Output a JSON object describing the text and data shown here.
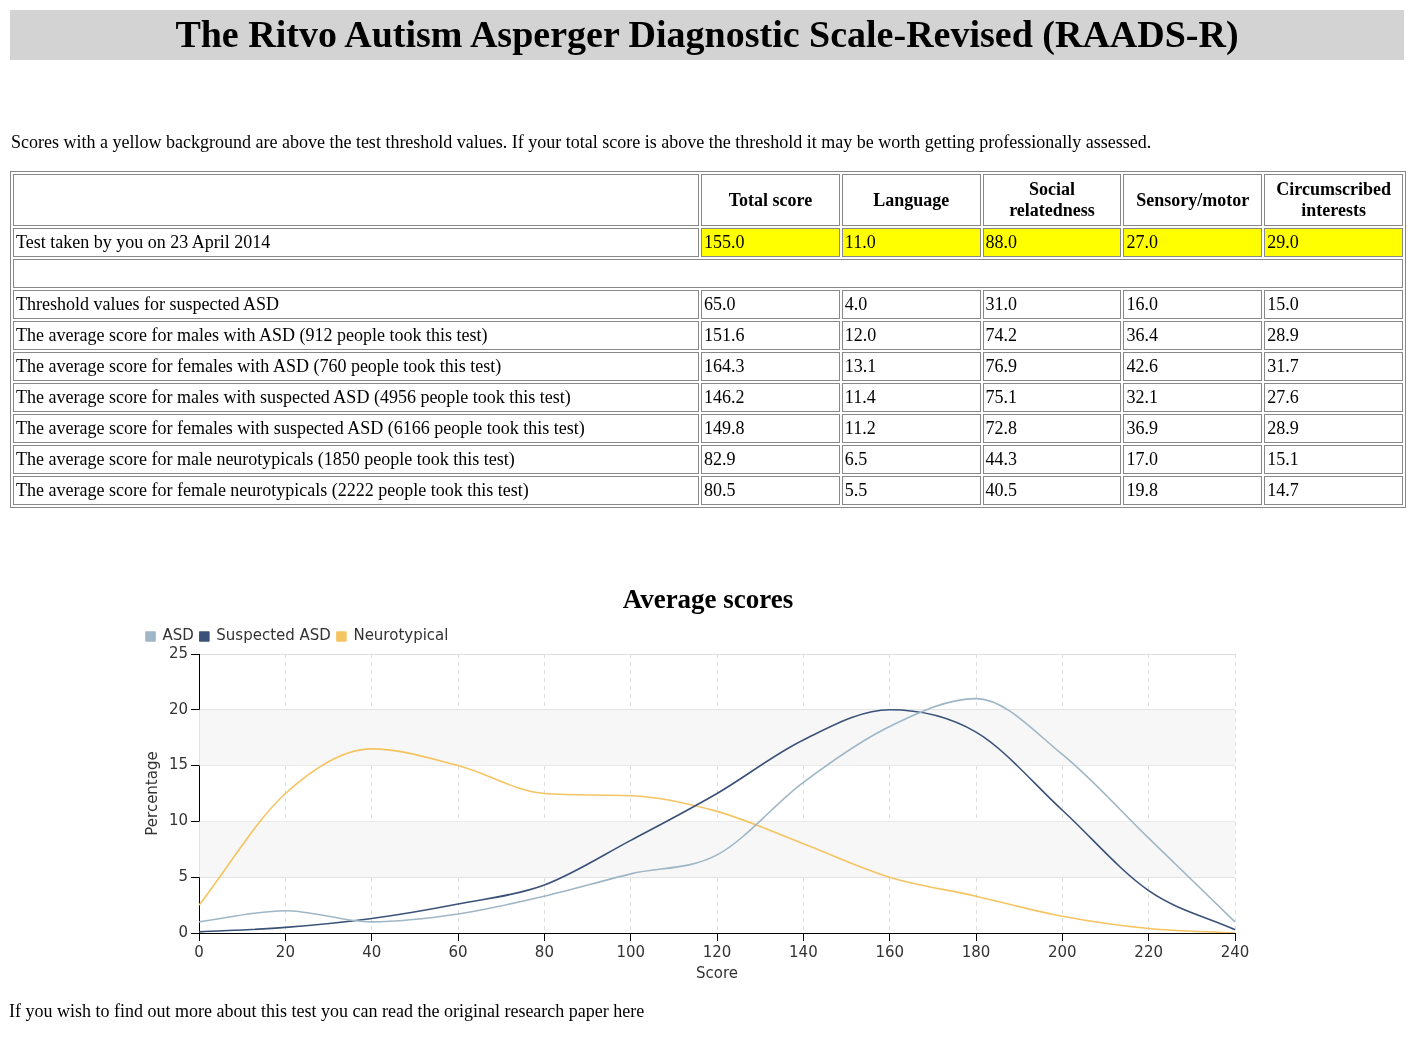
{
  "chart_data": [
    {
      "type": "other",
      "title": "The Ritvo Autism Asperger Diagnostic Scale-Revised (RAADS-R)",
      "subtitle": "Scores with a yellow background are above the test threshold values. If your total score is above the threshold it may be worth getting professionally assessed.",
      "categories": [
        "Total score",
        "Language",
        "Social relatedness",
        "Sensory/motor",
        "Circumscribed interests"
      ],
      "y_categories": [
        "Test taken by you on 23 April 2014"
      ],
      "cell_labels": [
        [
          "155.0",
          "11.0",
          "88.0",
          "27.0",
          "29.0"
        ]
      ],
      "colors": [
        [
          "#ffff00",
          "#ffff00",
          "#ffff00",
          "#ffff00",
          "#ffff00"
        ]
      ]
    },
    {
      "type": "other",
      "categories": [
        null,
        null,
        null,
        null,
        null
      ],
      "y_categories": [
        "Threshold values for suspected ASD",
        "The average score for males with ASD (912 people took this test)",
        "The average score for females with ASD (760 people took this test)",
        "The average score for males with suspected ASD (4956 people took this test)",
        "The average score for females with suspected ASD (6166 people took this test)",
        "The average score for male neurotypicals (1850 people took this test)",
        "The average score for female neurotypicals (2222 people took this test)"
      ],
      "cell_labels": [
        [
          "65.0",
          "4.0",
          "31.0",
          "16.0",
          "15.0"
        ],
        [
          "151.6",
          "12.0",
          "74.2",
          "36.4",
          "28.9"
        ],
        [
          "164.3",
          "13.1",
          "76.9",
          "42.6",
          "31.7"
        ],
        [
          "146.2",
          "11.4",
          "75.1",
          "32.1",
          "27.6"
        ],
        [
          "149.8",
          "11.2",
          "72.8",
          "36.9",
          "28.9"
        ],
        [
          "82.9",
          "6.5",
          "44.3",
          "17.0",
          "15.1"
        ],
        [
          "80.5",
          "5.5",
          "40.5",
          "19.8",
          "14.7"
        ]
      ]
    },
    {
      "type": "line",
      "title": "Average scores",
      "xlabel": "Score",
      "ylabel": "Percentage",
      "x": [
        0,
        20,
        40,
        60,
        80,
        100,
        120,
        140,
        160,
        180,
        200,
        220,
        240
      ],
      "series": [
        {
          "name": "ASD",
          "color": "#9fb6c6",
          "values": [
            1,
            2,
            1,
            1.7,
            3.3,
            5.3,
            7,
            13.5,
            18.5,
            21,
            16,
            8.5,
            1
          ]
        },
        {
          "name": "Suspected ASD",
          "color": "#3b5178",
          "values": [
            0.1,
            0.5,
            1.3,
            2.6,
            4.3,
            8.3,
            12.5,
            17.3,
            20,
            18,
            11,
            3.8,
            0.3
          ]
        },
        {
          "name": "Neurotypical",
          "color": "#f5c462",
          "values": [
            2.5,
            12.5,
            16.5,
            15,
            12.5,
            12.3,
            10.9,
            8,
            5,
            3.3,
            1.5,
            0.4,
            0
          ]
        }
      ],
      "xlim": [
        0,
        240
      ],
      "xticks": [
        0,
        20,
        40,
        60,
        80,
        100,
        120,
        140,
        160,
        180,
        200,
        220,
        240
      ],
      "ylim": [
        0,
        25
      ],
      "yticks": [
        0,
        5,
        10,
        15,
        20,
        25
      ],
      "bands": [
        {
          "axis": "y",
          "from": 5,
          "to": 10,
          "color": "#f7f7f7"
        },
        {
          "axis": "y",
          "from": 15,
          "to": 20,
          "color": "#f7f7f7"
        }
      ],
      "grid": true,
      "legend": "top left",
      "marker": "none",
      "line_style": "solid",
      "annotations": [
        "If you wish to find out more about this test you can read the original research paper here"
      ]
    }
  ]
}
